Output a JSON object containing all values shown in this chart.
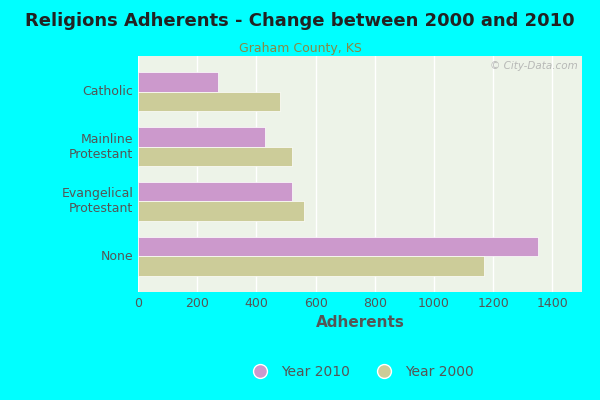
{
  "title": "Religions Adherents - Change between 2000 and 2010",
  "subtitle": "Graham County, KS",
  "xlabel": "Adherents",
  "categories": [
    "None",
    "Evangelical\nProtestant",
    "Mainline\nProtestant",
    "Catholic"
  ],
  "values_2010": [
    1350,
    520,
    430,
    270
  ],
  "values_2000": [
    1170,
    560,
    520,
    480
  ],
  "ytick_labels": [
    "None",
    "Evangelical\nProtestant",
    "Mainline\nProtestant",
    "Catholic"
  ],
  "color_2010": "#cc99cc",
  "color_2000": "#cccc99",
  "background_color": "#00ffff",
  "plot_bg_color": "#edf3e8",
  "xlim": [
    0,
    1500
  ],
  "xticks": [
    0,
    200,
    400,
    600,
    800,
    1000,
    1200,
    1400
  ],
  "bar_height": 0.35,
  "title_fontsize": 13,
  "subtitle_fontsize": 9,
  "label_fontsize": 9,
  "tick_fontsize": 9,
  "legend_fontsize": 10,
  "watermark": "© City-Data.com"
}
